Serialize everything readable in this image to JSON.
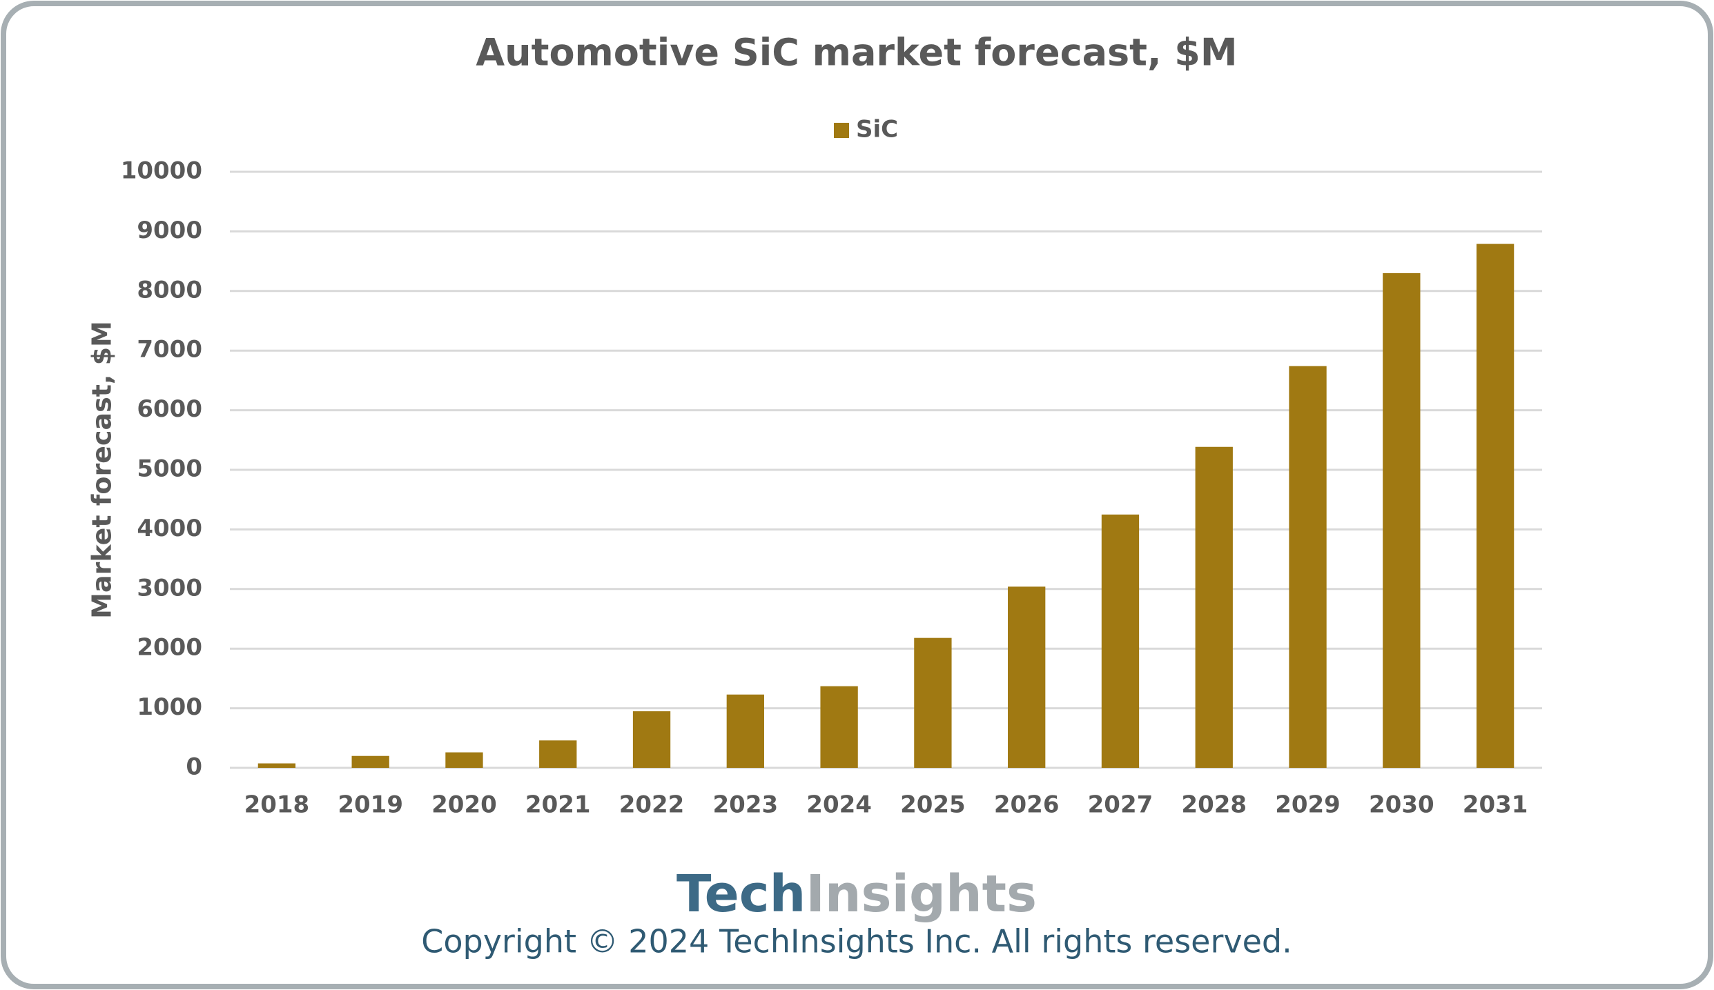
{
  "chart_data": {
    "type": "bar",
    "title": "Automotive SiC market forecast, $M",
    "y_label": "Market forecast, $M",
    "categories": [
      "2018",
      "2019",
      "2020",
      "2021",
      "2022",
      "2023",
      "2024",
      "2025",
      "2026",
      "2027",
      "2028",
      "2029",
      "2030",
      "2031"
    ],
    "series": [
      {
        "name": "SiC",
        "color": "#a07912",
        "values": [
          75,
          200,
          260,
          460,
          950,
          1230,
          1370,
          2180,
          3040,
          4250,
          5385,
          6740,
          8300,
          8790
        ]
      }
    ],
    "ylim": [
      0,
      10000
    ],
    "yticks": [
      0,
      1000,
      2000,
      3000,
      4000,
      5000,
      6000,
      7000,
      8000,
      9000,
      10000
    ],
    "grid": true,
    "legend": "top"
  },
  "footer": {
    "logo": [
      "Tech",
      "Insights"
    ],
    "copyright": "Copyright © 2024 TechInsights Inc.  All rights reserved."
  }
}
